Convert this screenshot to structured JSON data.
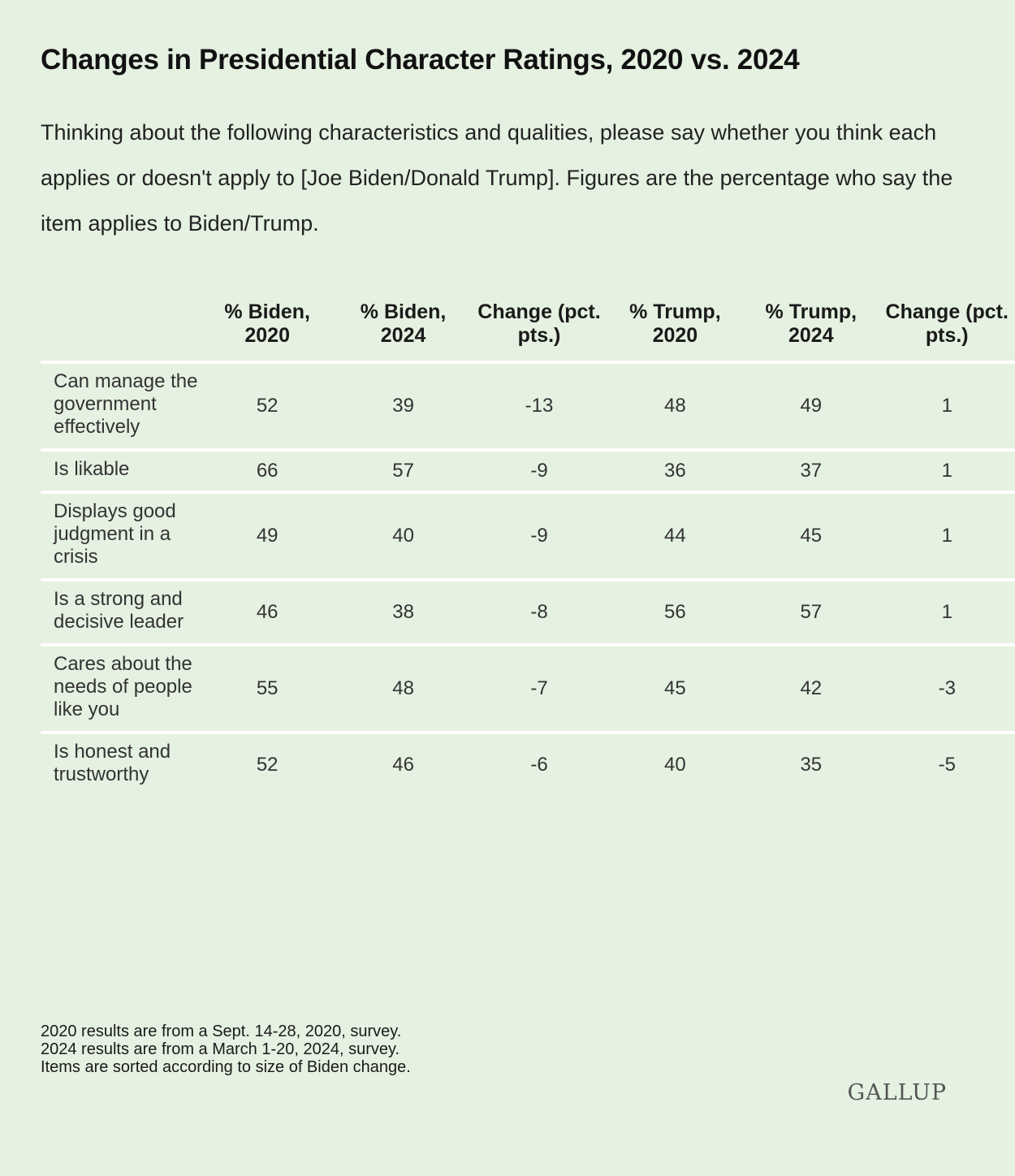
{
  "title": "Changes in Presidential Character Ratings, 2020 vs. 2024",
  "subtitle": "Thinking about the following characteristics and qualities, please say whether you think each applies or doesn't apply to [Joe Biden/Donald Trump]. Figures are the percentage who say the item applies to Biden/Trump.",
  "chart_data": {
    "type": "table",
    "columns": [
      "",
      "% Biden, 2020",
      "% Biden, 2024",
      "Change (pct. pts.)",
      "% Trump, 2020",
      "% Trump, 2024",
      "Change (pct. pts.)"
    ],
    "rows": [
      {
        "label": "Can manage the government effectively",
        "values": [
          "52",
          "39",
          "-13",
          "48",
          "49",
          "1"
        ]
      },
      {
        "label": "Is likable",
        "values": [
          "66",
          "57",
          "-9",
          "36",
          "37",
          "1"
        ]
      },
      {
        "label": "Displays good judgment in a crisis",
        "values": [
          "49",
          "40",
          "-9",
          "44",
          "45",
          "1"
        ]
      },
      {
        "label": "Is a strong and decisive leader",
        "values": [
          "46",
          "38",
          "-8",
          "56",
          "57",
          "1"
        ]
      },
      {
        "label": "Cares about the needs of people like you",
        "values": [
          "55",
          "48",
          "-7",
          "45",
          "42",
          "-3"
        ]
      },
      {
        "label": "Is honest and trustworthy",
        "values": [
          "52",
          "46",
          "-6",
          "40",
          "35",
          "-5"
        ]
      }
    ]
  },
  "notes": [
    "2020 results are from a Sept. 14-28, 2020, survey.",
    "2024 results are from a March 1-20, 2024, survey.",
    "Items are sorted according to size of Biden change."
  ],
  "logo": "GALLUP",
  "colors": {
    "background": "#e5f1e1",
    "row_divider": "#ffffff"
  }
}
